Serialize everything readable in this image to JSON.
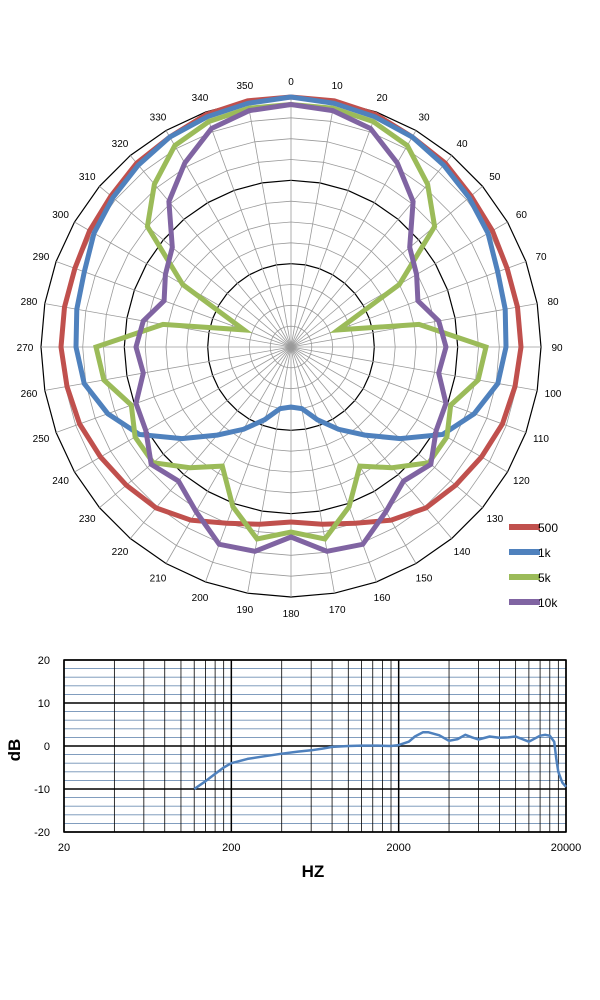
{
  "chart_data": [
    {
      "type": "polar",
      "angle_labels": [
        "0",
        "350",
        "340",
        "330",
        "320",
        "310",
        "300",
        "290",
        "280",
        "270",
        "260",
        "250",
        "240",
        "230",
        "220",
        "210",
        "200",
        "190",
        "180",
        "170",
        "160",
        "150",
        "140",
        "130",
        "120",
        "110",
        "100",
        "90",
        "80",
        "70",
        "60",
        "50",
        "40",
        "30",
        "20",
        "10"
      ],
      "angles": [
        0,
        10,
        20,
        30,
        40,
        50,
        60,
        70,
        80,
        90,
        100,
        110,
        120,
        130,
        140,
        150,
        160,
        170,
        180,
        190,
        200,
        210,
        220,
        230,
        240,
        250,
        260,
        270,
        280,
        290,
        300,
        310,
        320,
        330,
        340,
        350
      ],
      "rmax": 1.0,
      "series": [
        {
          "name": "500",
          "color": "#c0504d",
          "values": [
            1.0,
            1.0,
            0.99,
            0.97,
            0.96,
            0.94,
            0.93,
            0.92,
            0.92,
            0.92,
            0.91,
            0.9,
            0.88,
            0.86,
            0.84,
            0.8,
            0.75,
            0.72,
            0.7,
            0.72,
            0.75,
            0.8,
            0.84,
            0.86,
            0.88,
            0.9,
            0.91,
            0.92,
            0.92,
            0.92,
            0.93,
            0.94,
            0.96,
            0.97,
            0.99,
            1.0
          ]
        },
        {
          "name": "1k",
          "color": "#4f81bd",
          "values": [
            1.0,
            0.99,
            0.98,
            0.97,
            0.95,
            0.93,
            0.91,
            0.88,
            0.87,
            0.86,
            0.84,
            0.78,
            0.7,
            0.57,
            0.46,
            0.38,
            0.31,
            0.25,
            0.24,
            0.25,
            0.31,
            0.38,
            0.46,
            0.57,
            0.7,
            0.78,
            0.84,
            0.86,
            0.87,
            0.88,
            0.91,
            0.93,
            0.95,
            0.97,
            0.98,
            0.99
          ]
        },
        {
          "name": "5k",
          "color": "#9bbb59",
          "values": [
            0.97,
            0.97,
            0.96,
            0.93,
            0.85,
            0.75,
            0.5,
            0.2,
            0.52,
            0.78,
            0.76,
            0.68,
            0.72,
            0.72,
            0.63,
            0.55,
            0.68,
            0.78,
            0.74,
            0.78,
            0.68,
            0.55,
            0.63,
            0.72,
            0.72,
            0.68,
            0.76,
            0.78,
            0.52,
            0.2,
            0.5,
            0.75,
            0.85,
            0.93,
            0.96,
            0.97
          ]
        },
        {
          "name": "10k",
          "color": "#8064a2",
          "values": [
            0.97,
            0.96,
            0.93,
            0.85,
            0.76,
            0.62,
            0.58,
            0.54,
            0.6,
            0.62,
            0.6,
            0.66,
            0.67,
            0.73,
            0.7,
            0.76,
            0.84,
            0.83,
            0.76,
            0.83,
            0.84,
            0.76,
            0.7,
            0.73,
            0.67,
            0.66,
            0.6,
            0.62,
            0.6,
            0.54,
            0.58,
            0.62,
            0.76,
            0.85,
            0.93,
            0.96
          ]
        }
      ]
    },
    {
      "type": "line",
      "xscale": "log",
      "x_tick_labels": [
        "20",
        "200",
        "2000",
        "20000"
      ],
      "x_ticks": [
        20,
        200,
        2000,
        20000
      ],
      "xlim": [
        20,
        20000
      ],
      "ylim": [
        -20,
        20
      ],
      "y_tick_labels": [
        "20",
        "10",
        "0",
        "-10",
        "-20"
      ],
      "y_ticks": [
        20,
        10,
        0,
        -10,
        -20
      ],
      "xlabel": "HZ",
      "ylabel": "dB",
      "grid": true,
      "series": [
        {
          "color": "#4f81bd",
          "x": [
            120,
            140,
            160,
            180,
            200,
            250,
            300,
            400,
            500,
            600,
            700,
            800,
            1000,
            1200,
            1500,
            1800,
            2000,
            2300,
            2500,
            2800,
            3000,
            3500,
            4000,
            4500,
            5000,
            5500,
            6000,
            7000,
            8000,
            9000,
            10000,
            12000,
            14000,
            15000,
            16000,
            17000,
            17500,
            18000,
            19000,
            20000
          ],
          "y": [
            -10,
            -8.2,
            -6.5,
            -5,
            -4,
            -3,
            -2.5,
            -1.8,
            -1.3,
            -1,
            -0.6,
            -0.2,
            0,
            0.1,
            0.1,
            0,
            0.2,
            1,
            2.2,
            3.2,
            3.2,
            2.5,
            1.2,
            1.6,
            2.6,
            2,
            1.5,
            2.2,
            1.9,
            2,
            2.2,
            1,
            2.4,
            2.6,
            2.4,
            1,
            -3,
            -6,
            -8.5,
            -9.5
          ]
        }
      ]
    }
  ]
}
